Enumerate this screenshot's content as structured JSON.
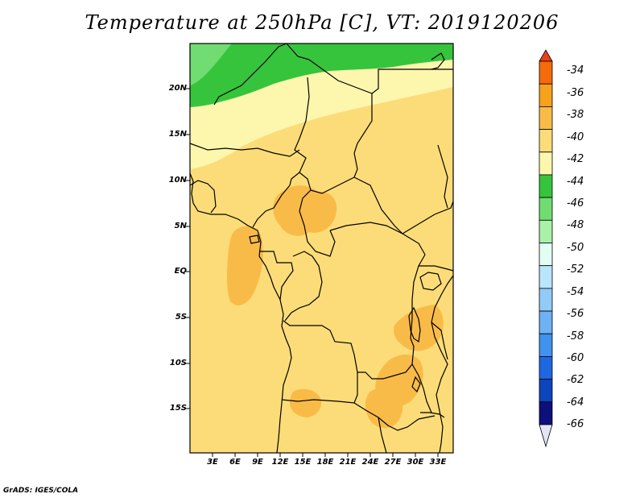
{
  "title": "Temperature at 250hPa [C], VT: 2019120206",
  "credit": "GrADS: IGES/COLA",
  "lat_labels": [
    "20N",
    "15N",
    "10N",
    "5N",
    "EQ",
    "5S",
    "10S",
    "15S"
  ],
  "lon_labels": [
    "3E",
    "6E",
    "9E",
    "12E",
    "15E",
    "18E",
    "21E",
    "24E",
    "27E",
    "30E",
    "33E"
  ],
  "colorbar": {
    "labels": [
      "-34",
      "-36",
      "-38",
      "-40",
      "-42",
      "-44",
      "-46",
      "-48",
      "-50",
      "-52",
      "-54",
      "-56",
      "-58",
      "-60",
      "-62",
      "-64",
      "-66"
    ],
    "colors_top_to_bottom": [
      "#e8411c",
      "#f56a0a",
      "#f5a21c",
      "#f9bb48",
      "#fcdc78",
      "#fdf6ad",
      "#36c43c",
      "#70dc72",
      "#aaf1a8",
      "#e2fef4",
      "#b9e6fc",
      "#92cbf7",
      "#6eb1f4",
      "#4191ee",
      "#1d68e0",
      "#0d45bd",
      "#0b107b",
      "#e3e5f6"
    ]
  },
  "map": {
    "dominant_value_color": "#fcdc78",
    "warm_patch_color": "#f9bb48",
    "cold_north_color": "#36c43c",
    "light_band_color": "#fdf6ad",
    "pale_green_color": "#70dc72"
  }
}
